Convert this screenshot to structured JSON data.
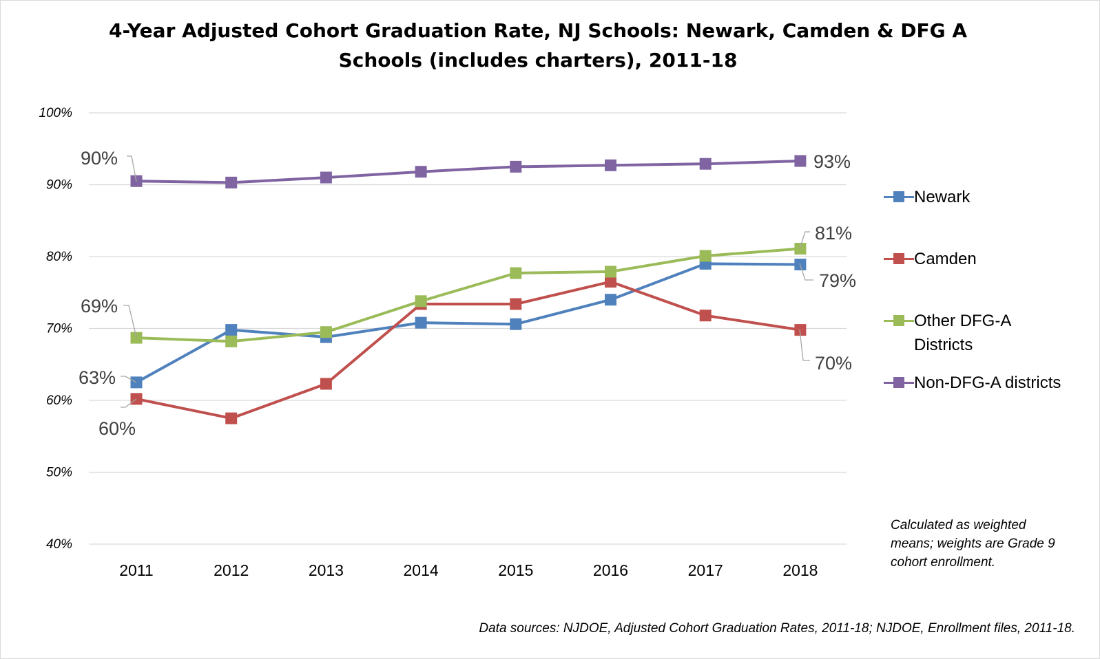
{
  "chart_data": {
    "type": "line",
    "title": "4-Year Adjusted Cohort Graduation Rate, NJ Schools: Newark, Camden & DFG A Schools (includes charters), 2011-18",
    "xlabel": "",
    "ylabel": "",
    "categories": [
      "2011",
      "2012",
      "2013",
      "2014",
      "2015",
      "2016",
      "2017",
      "2018"
    ],
    "ylim": [
      40,
      100
    ],
    "y_ticks": [
      40,
      50,
      60,
      70,
      80,
      90,
      100
    ],
    "y_tick_labels": [
      "40%",
      "50%",
      "60%",
      "70%",
      "80%",
      "90%",
      "100%"
    ],
    "grid": true,
    "legend_position": "right",
    "series": [
      {
        "name": "Newark",
        "color": "#4f81bd",
        "values": [
          62.5,
          69.8,
          68.8,
          70.8,
          70.6,
          74.0,
          79.0,
          78.9
        ]
      },
      {
        "name": "Camden",
        "color": "#c0504d",
        "values": [
          60.2,
          57.5,
          62.3,
          73.4,
          73.4,
          76.5,
          71.8,
          69.8
        ]
      },
      {
        "name": "Other DFG-A Districts",
        "color": "#9bbb59",
        "values": [
          68.7,
          68.2,
          69.5,
          73.8,
          77.7,
          77.9,
          80.1,
          81.1
        ]
      },
      {
        "name": "Non-DFG-A districts",
        "color": "#8064a2",
        "values": [
          90.5,
          90.3,
          91.0,
          91.8,
          92.5,
          92.7,
          92.9,
          93.3
        ]
      }
    ],
    "data_labels": [
      {
        "series": "Non-DFG-A districts",
        "category": "2011",
        "text": "90%"
      },
      {
        "series": "Other DFG-A Districts",
        "category": "2011",
        "text": "69%"
      },
      {
        "series": "Newark",
        "category": "2011",
        "text": "63%"
      },
      {
        "series": "Camden",
        "category": "2011",
        "text": "60%"
      },
      {
        "series": "Non-DFG-A districts",
        "category": "2018",
        "text": "93%"
      },
      {
        "series": "Other DFG-A Districts",
        "category": "2018",
        "text": "81%"
      },
      {
        "series": "Newark",
        "category": "2018",
        "text": "79%"
      },
      {
        "series": "Camden",
        "category": "2018",
        "text": "70%"
      }
    ]
  },
  "note": "Calculated as weighted means; weights are Grade 9 cohort enrollment.",
  "source": "Data sources: NJDOE, Adjusted Cohort Graduation Rates, 2011-18; NJDOE, Enrollment files, 2011-18.",
  "colors": {
    "gridline": "#d9d9d9",
    "leader": "#a6a6a6",
    "label_text": "#404040"
  }
}
